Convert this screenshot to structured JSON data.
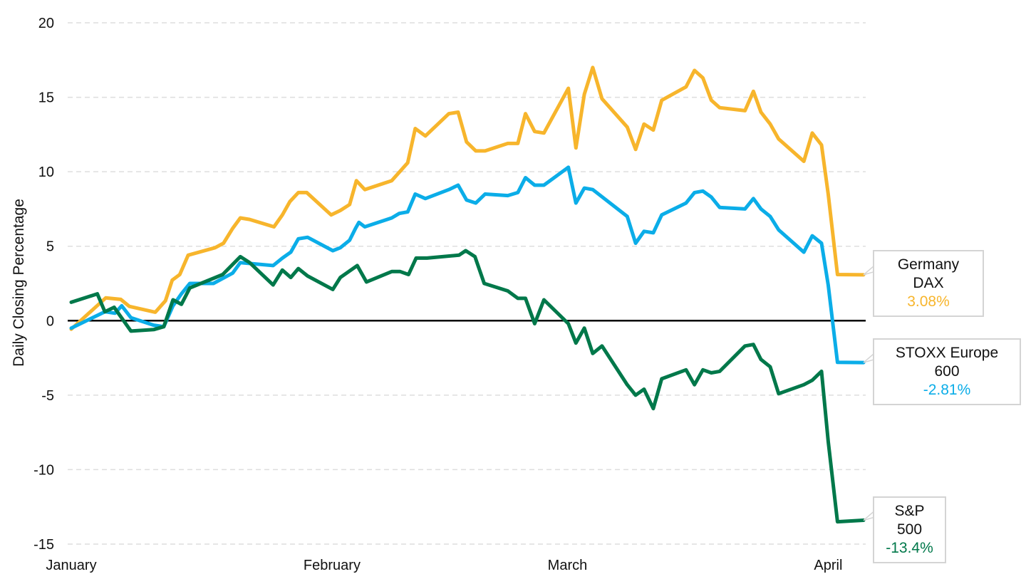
{
  "chart_data": {
    "type": "line",
    "title": "",
    "xlabel": "",
    "ylabel": "Daily Closing Percentage",
    "ylim": [
      -15,
      20
    ],
    "yticks": [
      -15,
      -10,
      -5,
      0,
      5,
      10,
      15,
      20
    ],
    "x_unit": "days since start of January",
    "xlim": [
      0,
      94.2
    ],
    "xticks": [
      {
        "x": 0,
        "label": "January"
      },
      {
        "x": 31,
        "label": "February"
      },
      {
        "x": 59,
        "label": "March"
      },
      {
        "x": 90,
        "label": "April"
      }
    ],
    "grid": true,
    "series": [
      {
        "name": "Germany DAX",
        "end_label": "3.08%",
        "color": "#F7B52C",
        "points": [
          [
            0,
            -0.57
          ],
          [
            4.1,
            1.53
          ],
          [
            5.9,
            1.43
          ],
          [
            6.9,
            0.96
          ],
          [
            10.0,
            0.57
          ],
          [
            11.2,
            1.34
          ],
          [
            12.0,
            2.72
          ],
          [
            12.9,
            3.1
          ],
          [
            13.9,
            4.4
          ],
          [
            17.1,
            4.9
          ],
          [
            18.1,
            5.2
          ],
          [
            19.2,
            6.2
          ],
          [
            20.1,
            6.9
          ],
          [
            21.2,
            6.8
          ],
          [
            24.1,
            6.3
          ],
          [
            25.1,
            7.1
          ],
          [
            26.0,
            8.0
          ],
          [
            27.0,
            8.6
          ],
          [
            28.0,
            8.6
          ],
          [
            30.9,
            7.1
          ],
          [
            32.0,
            7.4
          ],
          [
            33.1,
            7.8
          ],
          [
            33.9,
            9.4
          ],
          [
            34.9,
            8.8
          ],
          [
            38.1,
            9.4
          ],
          [
            40.0,
            10.6
          ],
          [
            40.9,
            12.9
          ],
          [
            42.1,
            12.4
          ],
          [
            44.9,
            13.9
          ],
          [
            46.0,
            14.0
          ],
          [
            47.0,
            12.0
          ],
          [
            48.1,
            11.4
          ],
          [
            49.2,
            11.4
          ],
          [
            51.9,
            11.9
          ],
          [
            53.1,
            11.9
          ],
          [
            54.0,
            13.9
          ],
          [
            55.1,
            12.7
          ],
          [
            56.2,
            12.6
          ],
          [
            59.1,
            15.6
          ],
          [
            60.0,
            11.6
          ],
          [
            61.0,
            15.2
          ],
          [
            62.0,
            17.0
          ],
          [
            63.1,
            14.9
          ],
          [
            66.1,
            13.0
          ],
          [
            67.1,
            11.5
          ],
          [
            68.1,
            13.2
          ],
          [
            69.2,
            12.8
          ],
          [
            70.2,
            14.8
          ],
          [
            73.1,
            15.7
          ],
          [
            74.1,
            16.8
          ],
          [
            75.1,
            16.3
          ],
          [
            76.1,
            14.8
          ],
          [
            77.1,
            14.3
          ],
          [
            80.1,
            14.1
          ],
          [
            81.1,
            15.4
          ],
          [
            82.0,
            14.0
          ],
          [
            83.1,
            13.2
          ],
          [
            84.1,
            12.2
          ],
          [
            87.1,
            10.7
          ],
          [
            88.1,
            12.6
          ],
          [
            89.2,
            11.8
          ],
          [
            90.0,
            8.5
          ],
          [
            91.1,
            3.1
          ],
          [
            94.2,
            3.08
          ]
        ]
      },
      {
        "name": "STOXX Europe 600",
        "end_label": "-2.81%",
        "color": "#0BADE8",
        "points": [
          [
            0,
            -0.5
          ],
          [
            4.0,
            0.6
          ],
          [
            5.2,
            0.5
          ],
          [
            6.0,
            1.0
          ],
          [
            7.1,
            0.2
          ],
          [
            9.8,
            -0.3
          ],
          [
            11.0,
            -0.4
          ],
          [
            12.1,
            1.0
          ],
          [
            13.1,
            1.8
          ],
          [
            14.1,
            2.5
          ],
          [
            16.9,
            2.5
          ],
          [
            19.2,
            3.2
          ],
          [
            20.1,
            3.9
          ],
          [
            24.0,
            3.7
          ],
          [
            25.1,
            4.2
          ],
          [
            26.1,
            4.6
          ],
          [
            27.0,
            5.5
          ],
          [
            28.1,
            5.6
          ],
          [
            31.1,
            4.7
          ],
          [
            32.0,
            4.9
          ],
          [
            33.1,
            5.4
          ],
          [
            33.8,
            6.2
          ],
          [
            34.2,
            6.6
          ],
          [
            34.9,
            6.3
          ],
          [
            38.1,
            6.9
          ],
          [
            39.0,
            7.2
          ],
          [
            40.0,
            7.3
          ],
          [
            40.9,
            8.5
          ],
          [
            42.1,
            8.2
          ],
          [
            44.9,
            8.8
          ],
          [
            46.0,
            9.1
          ],
          [
            47.0,
            8.1
          ],
          [
            48.1,
            7.9
          ],
          [
            49.2,
            8.5
          ],
          [
            51.9,
            8.4
          ],
          [
            53.1,
            8.6
          ],
          [
            54.0,
            9.6
          ],
          [
            55.1,
            9.1
          ],
          [
            56.2,
            9.1
          ],
          [
            59.1,
            10.3
          ],
          [
            60.0,
            7.9
          ],
          [
            61.0,
            8.9
          ],
          [
            62.0,
            8.8
          ],
          [
            66.1,
            7.0
          ],
          [
            67.1,
            5.2
          ],
          [
            68.1,
            6.0
          ],
          [
            69.2,
            5.9
          ],
          [
            70.2,
            7.1
          ],
          [
            73.1,
            7.9
          ],
          [
            74.1,
            8.6
          ],
          [
            75.1,
            8.7
          ],
          [
            76.1,
            8.3
          ],
          [
            77.1,
            7.6
          ],
          [
            80.1,
            7.5
          ],
          [
            81.1,
            8.2
          ],
          [
            82.0,
            7.5
          ],
          [
            83.1,
            7.0
          ],
          [
            84.1,
            6.1
          ],
          [
            87.1,
            4.6
          ],
          [
            88.1,
            5.7
          ],
          [
            89.2,
            5.2
          ],
          [
            90.0,
            2.4
          ],
          [
            91.1,
            -2.8
          ],
          [
            94.2,
            -2.81
          ]
        ]
      },
      {
        "name": "S&P 500",
        "end_label": "-13.4%",
        "color": "#00784A",
        "points": [
          [
            0,
            1.24
          ],
          [
            3.1,
            1.8
          ],
          [
            4.0,
            0.6
          ],
          [
            5.1,
            0.9
          ],
          [
            7.1,
            -0.7
          ],
          [
            9.8,
            -0.6
          ],
          [
            11.0,
            -0.4
          ],
          [
            12.1,
            1.4
          ],
          [
            13.1,
            1.1
          ],
          [
            14.1,
            2.2
          ],
          [
            18.0,
            3.1
          ],
          [
            20.1,
            4.3
          ],
          [
            21.2,
            3.9
          ],
          [
            24.0,
            2.4
          ],
          [
            25.1,
            3.4
          ],
          [
            26.1,
            2.9
          ],
          [
            27.0,
            3.5
          ],
          [
            28.1,
            3.0
          ],
          [
            31.1,
            2.1
          ],
          [
            32.0,
            2.9
          ],
          [
            34.0,
            3.7
          ],
          [
            35.1,
            2.6
          ],
          [
            38.1,
            3.3
          ],
          [
            39.1,
            3.3
          ],
          [
            40.1,
            3.1
          ],
          [
            41.0,
            4.2
          ],
          [
            42.3,
            4.2
          ],
          [
            46.1,
            4.4
          ],
          [
            46.9,
            4.7
          ],
          [
            48.0,
            4.3
          ],
          [
            49.1,
            2.5
          ],
          [
            51.9,
            2.0
          ],
          [
            53.1,
            1.5
          ],
          [
            54.0,
            1.5
          ],
          [
            55.1,
            -0.2
          ],
          [
            56.2,
            1.4
          ],
          [
            59.1,
            -0.2
          ],
          [
            60.0,
            -1.5
          ],
          [
            61.0,
            -0.5
          ],
          [
            62.0,
            -2.2
          ],
          [
            63.1,
            -1.7
          ],
          [
            66.1,
            -4.3
          ],
          [
            67.1,
            -5.0
          ],
          [
            68.1,
            -4.6
          ],
          [
            69.2,
            -5.9
          ],
          [
            70.2,
            -3.9
          ],
          [
            73.1,
            -3.3
          ],
          [
            74.1,
            -4.3
          ],
          [
            75.1,
            -3.3
          ],
          [
            76.1,
            -3.5
          ],
          [
            77.1,
            -3.4
          ],
          [
            80.1,
            -1.7
          ],
          [
            81.1,
            -1.6
          ],
          [
            82.0,
            -2.6
          ],
          [
            83.1,
            -3.1
          ],
          [
            84.1,
            -4.9
          ],
          [
            87.1,
            -4.3
          ],
          [
            88.1,
            -4.0
          ],
          [
            89.2,
            -3.4
          ],
          [
            90.0,
            -8.1
          ],
          [
            91.1,
            -13.5
          ],
          [
            94.2,
            -13.4
          ]
        ]
      }
    ]
  }
}
